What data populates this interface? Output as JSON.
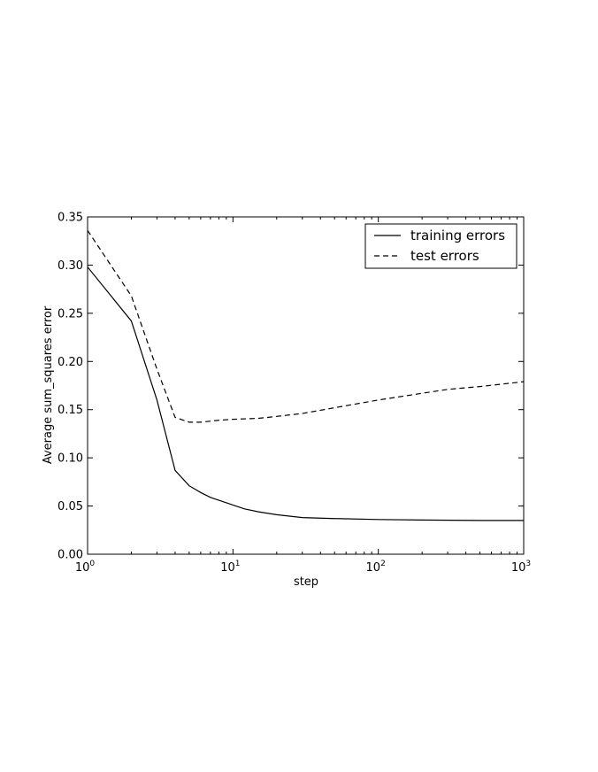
{
  "chart_data": {
    "type": "line",
    "title": "",
    "xlabel": "step",
    "ylabel": "Average sum_squares error",
    "xscale": "log",
    "xlim": [
      1,
      1000
    ],
    "ylim": [
      0,
      0.35
    ],
    "yticks": [
      "0.00",
      "0.05",
      "0.10",
      "0.15",
      "0.20",
      "0.25",
      "0.30",
      "0.35"
    ],
    "xticks": [
      {
        "value": 1,
        "base": "10",
        "exp": "0"
      },
      {
        "value": 10,
        "base": "10",
        "exp": "1"
      },
      {
        "value": 100,
        "base": "10",
        "exp": "2"
      },
      {
        "value": 1000,
        "base": "10",
        "exp": "3"
      }
    ],
    "grid": false,
    "legend_position": "top-right",
    "series": [
      {
        "name": "training errors",
        "style": "solid",
        "color": "#000000",
        "x": [
          1,
          2,
          3,
          4,
          5,
          6,
          7,
          8,
          10,
          12,
          15,
          20,
          30,
          50,
          100,
          200,
          500,
          1000
        ],
        "y": [
          0.298,
          0.242,
          0.16,
          0.087,
          0.071,
          0.064,
          0.059,
          0.056,
          0.051,
          0.047,
          0.044,
          0.041,
          0.038,
          0.037,
          0.036,
          0.0355,
          0.035,
          0.035
        ]
      },
      {
        "name": "test errors",
        "style": "dashed",
        "color": "#000000",
        "x": [
          1,
          2,
          3,
          4,
          5,
          6,
          8,
          10,
          15,
          20,
          30,
          50,
          100,
          200,
          300,
          500,
          1000
        ],
        "y": [
          0.336,
          0.268,
          0.192,
          0.142,
          0.137,
          0.137,
          0.139,
          0.14,
          0.141,
          0.143,
          0.146,
          0.152,
          0.16,
          0.167,
          0.171,
          0.174,
          0.179
        ]
      }
    ]
  }
}
